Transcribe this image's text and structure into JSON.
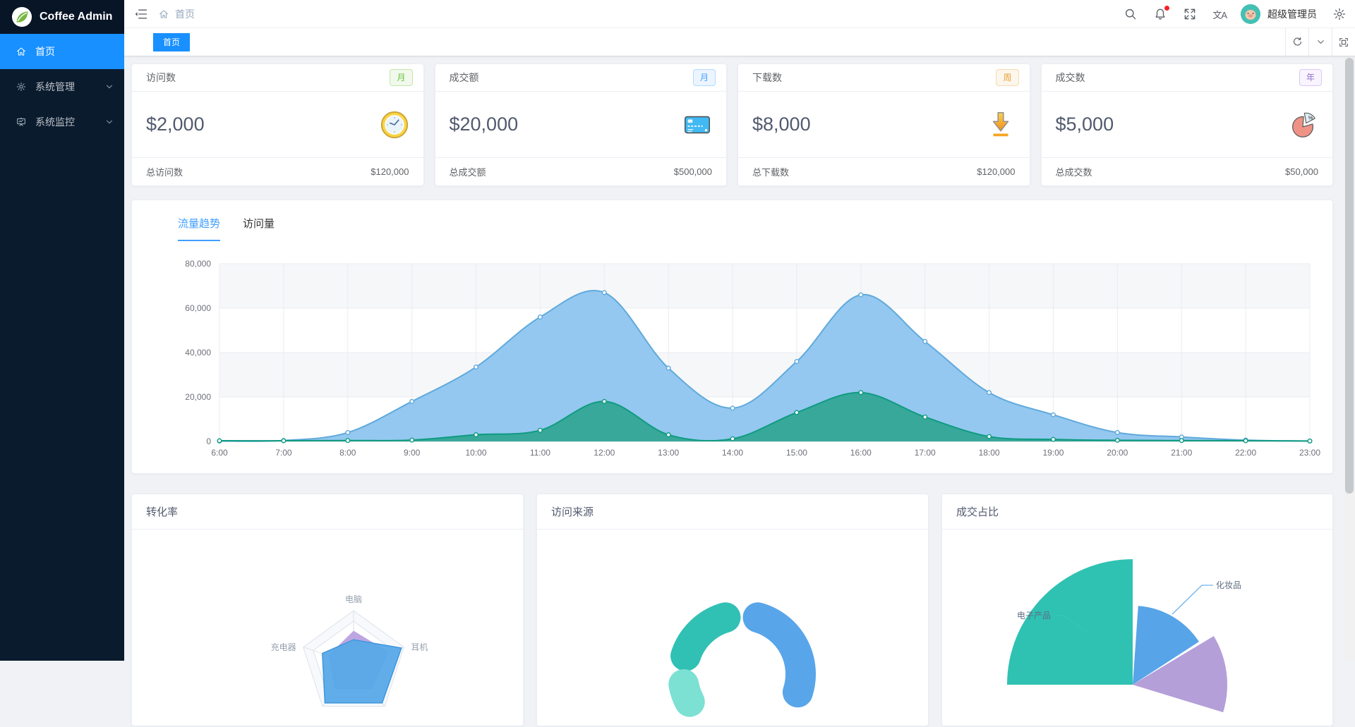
{
  "app": {
    "name": "Coffee Admin"
  },
  "colors": {
    "accent": "#1890ff",
    "sidebar_bg": "#0a1b2e",
    "content_bg": "#f0f2f5",
    "tab_active_bg": "#1890ff"
  },
  "sidebar": {
    "items": [
      {
        "label": "首页",
        "icon": "home-icon",
        "active": true,
        "expandable": false
      },
      {
        "label": "系统管理",
        "icon": "gear-icon",
        "active": false,
        "expandable": true
      },
      {
        "label": "系统监控",
        "icon": "monitor-icon",
        "active": false,
        "expandable": true
      }
    ]
  },
  "header": {
    "breadcrumb": "首页",
    "username": "超级管理员",
    "translate_label": "文A",
    "icons": [
      "menu-fold-icon",
      "home-icon",
      "search-icon",
      "bell-icon",
      "fullscreen-icon",
      "translate-icon",
      "gear-icon"
    ],
    "notification_dot": true
  },
  "tabbar": {
    "tabs": [
      {
        "label": "首页",
        "active": true
      }
    ],
    "controls": [
      "refresh-icon",
      "chevron-down-icon",
      "maximize-icon"
    ]
  },
  "stat_cards": [
    {
      "title": "访问数",
      "badge": "月",
      "badge_type": "green",
      "value": "$2,000",
      "icon": "clock-icon",
      "footer_label": "总访问数",
      "footer_value": "$120,000"
    },
    {
      "title": "成交额",
      "badge": "月",
      "badge_type": "blue",
      "value": "$20,000",
      "icon": "credit-card-icon",
      "footer_label": "总成交额",
      "footer_value": "$500,000"
    },
    {
      "title": "下载数",
      "badge": "周",
      "badge_type": "orange",
      "value": "$8,000",
      "icon": "download-icon",
      "footer_label": "总下载数",
      "footer_value": "$120,000"
    },
    {
      "title": "成交数",
      "badge": "年",
      "badge_type": "purple",
      "value": "$5,000",
      "icon": "pie-icon",
      "footer_label": "总成交数",
      "footer_value": "$50,000"
    }
  ],
  "trend": {
    "tabs": [
      {
        "label": "流量趋势",
        "active": true
      },
      {
        "label": "访问量",
        "active": false
      }
    ]
  },
  "chart_data": [
    {
      "id": "traffic-trend",
      "type": "area",
      "title": "流量趋势",
      "x": [
        "6:00",
        "7:00",
        "8:00",
        "9:00",
        "10:00",
        "11:00",
        "12:00",
        "13:00",
        "14:00",
        "15:00",
        "16:00",
        "17:00",
        "18:00",
        "19:00",
        "20:00",
        "21:00",
        "22:00",
        "23:00"
      ],
      "ylim": [
        0,
        80000
      ],
      "yticks": [
        0,
        20000,
        40000,
        60000,
        80000
      ],
      "grid": true,
      "split_area": true,
      "legend": "none",
      "smooth": true,
      "series": [
        {
          "name": "blue-series",
          "line_color": "#5fa9dc",
          "fill_color": "#8ec5ef",
          "values": [
            150,
            400,
            4000,
            18000,
            33500,
            56000,
            67000,
            33000,
            15000,
            36000,
            66000,
            45000,
            22000,
            12000,
            4000,
            2000,
            600,
            150
          ]
        },
        {
          "name": "teal-series",
          "line_color": "#0f9b81",
          "fill_color": "#2fa593",
          "values": [
            300,
            300,
            400,
            600,
            3000,
            5000,
            18000,
            3000,
            1200,
            13000,
            22000,
            11000,
            2200,
            900,
            500,
            400,
            300,
            200
          ]
        }
      ]
    },
    {
      "id": "conversion-radar",
      "type": "radar",
      "title": "转化率",
      "axes_count": 5,
      "max": 100,
      "indicators": [
        {
          "label": "电脑",
          "axis": 0
        },
        {
          "label": "耳机",
          "axis": 1
        },
        {
          "label": "充电器",
          "axis": 4
        }
      ],
      "series": [
        {
          "name": "purple-series",
          "color": "#b79ede",
          "values": [
            62,
            70,
            60,
            60,
            50
          ]
        },
        {
          "name": "blue-series",
          "color": "#57a9e8",
          "values": [
            45,
            95,
            92,
            92,
            62
          ]
        }
      ]
    },
    {
      "id": "visit-source",
      "type": "donut",
      "title": "访问来源",
      "inner_radius": 62,
      "outer_radius": 105,
      "segments": [
        {
          "color": "#58a5ea",
          "start_deg": 4,
          "end_deg": 120
        },
        {
          "color": "#30c0b4",
          "start_deg": -84,
          "end_deg": -4
        },
        {
          "color": "#7ce0d3",
          "start_deg": -130,
          "end_deg": -88
        }
      ]
    },
    {
      "id": "deal-share",
      "type": "rose_pie",
      "title": "成交占比",
      "slices": [
        {
          "label": "电子产品",
          "color": "#2fc2b2",
          "start_deg": -90,
          "end_deg": 0,
          "radius": 178,
          "label_line": [
            [
              205,
              145
            ],
            [
              172,
              122
            ],
            [
              158,
              122
            ]
          ],
          "label_xy": [
            154,
            126
          ],
          "label_anchor": "end",
          "line_color": "#35c5b5"
        },
        {
          "label": "化妆品",
          "color": "#57a4e8",
          "start_deg": 4,
          "end_deg": 57,
          "radius": 112,
          "label_line": [
            [
              326,
              120
            ],
            [
              368,
              79
            ],
            [
              384,
              79
            ]
          ],
          "label_xy": [
            388,
            83
          ],
          "label_anchor": "start",
          "line_color": "#6cb3ec"
        },
        {
          "label": "",
          "color": "#b49fd8",
          "start_deg": 59,
          "end_deg": 107,
          "radius": 134
        }
      ]
    }
  ]
}
